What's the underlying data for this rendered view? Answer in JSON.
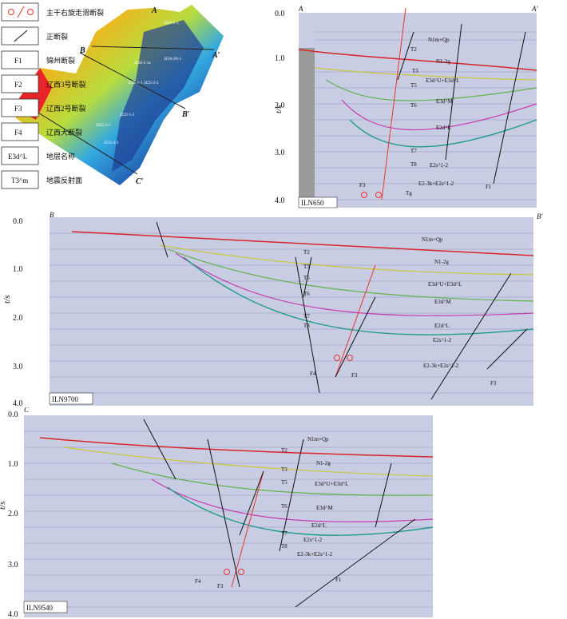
{
  "map": {
    "label_A": "A",
    "label_A2": "A′",
    "label_B": "B",
    "label_B2": "B′",
    "label_C": "C",
    "label_C2": "C′",
    "wells": [
      "JZ20-2-1",
      "JZ20-2N-1",
      "JZ20-2-1a",
      "JZ25-1-1",
      "JZ25-2-2",
      "JZ25-1-2",
      "JZ25-3-1",
      "JZ25-3-2"
    ]
  },
  "panel_top": {
    "line_name": "ILN650",
    "end_left": "A",
    "end_right": "A′",
    "axis_title": "t/s",
    "ticks": [
      "0.0",
      "1.0",
      "2.0",
      "3.0",
      "4.0"
    ],
    "labels": [
      "N1m+Qp",
      "T2",
      "N1-2g",
      "T3",
      "E3d^U+E3d^L",
      "T5",
      "E3d^M",
      "T6",
      "E2d^L",
      "T7",
      "T8",
      "E2s^1-2",
      "F3",
      "E2-3k+E2s^1-2",
      "F1",
      "Tg"
    ]
  },
  "panel_mid": {
    "line_name": "ILN9700",
    "end_left": "B",
    "end_right": "B′",
    "axis_title": "t/s",
    "ticks": [
      "0.0",
      "1.0",
      "2.0",
      "3.0",
      "4.0"
    ],
    "labels": [
      "N1m+Qp",
      "T2",
      "N1-2g",
      "T3",
      "T5",
      "E3d^U+E3d^L",
      "T6",
      "E3d^M",
      "T7",
      "E2d^L",
      "T8",
      "E2s^1-2",
      "F4",
      "F3",
      "E2-3k+E2s^1-2",
      "F3"
    ]
  },
  "panel_bot": {
    "line_name": "ILN9540",
    "end_left": "C",
    "end_right": "C′",
    "axis_title": "t/s",
    "ticks": [
      "0.0",
      "1.0",
      "2.0",
      "3.0",
      "4.0"
    ],
    "labels": [
      "N1m+Qp",
      "T2",
      "N1-2g",
      "T3",
      "E3d^U+E3d^L",
      "T5",
      "E3d^M",
      "T6",
      "E2d^L",
      "T7",
      "E2s^1-2",
      "T8",
      "E2-3k+E2s^1-2",
      "F4",
      "F3",
      "F1"
    ]
  },
  "legend": {
    "items": [
      {
        "symbol": "strike-slip",
        "text": "主干右旋走滑断裂"
      },
      {
        "symbol": "normal-fault",
        "text": "正断裂"
      },
      {
        "symbol": "F1",
        "text": "锦州断裂"
      },
      {
        "symbol": "F2",
        "text": "辽西3号断裂"
      },
      {
        "symbol": "F3",
        "text": "辽西2号断裂"
      },
      {
        "symbol": "F4",
        "text": "辽西大断裂"
      },
      {
        "symbol": "E3d^L",
        "text": "地层名称"
      },
      {
        "symbol": "T3^m",
        "text": "地震反射面"
      }
    ]
  },
  "colors": {
    "red_fault": "#e8352a",
    "horizon_red": "#d9242a",
    "horizon_green": "#5fb34a",
    "horizon_teal": "#1e9c8a",
    "horizon_magenta": "#c83bb0",
    "horizon_yellow": "#c9c83a",
    "seismic": "#c9cde3"
  }
}
